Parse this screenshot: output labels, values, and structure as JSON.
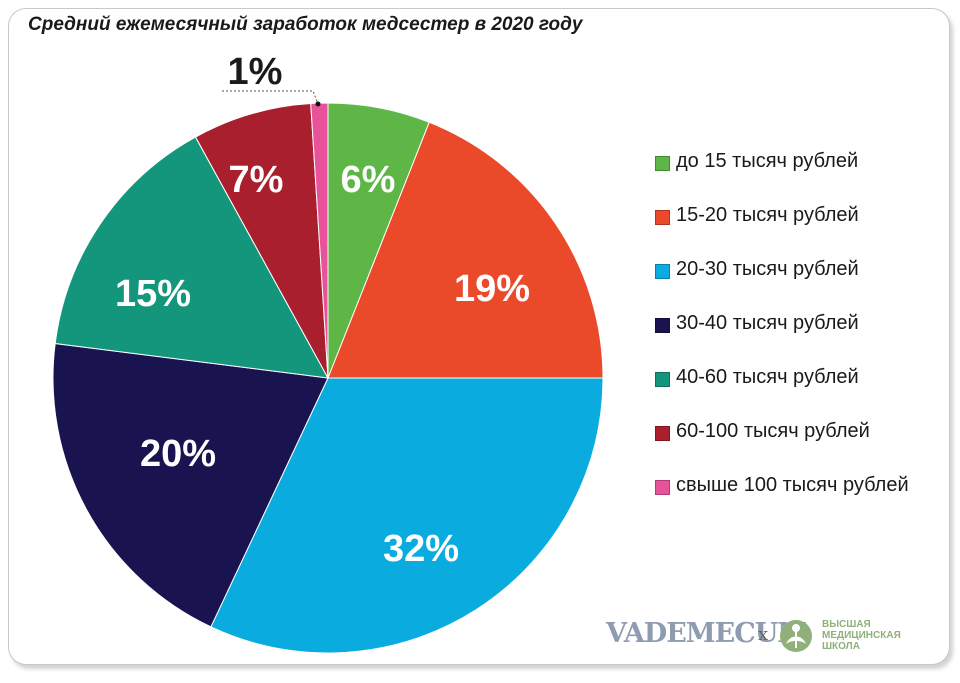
{
  "title": "Средний ежемесячный заработок медсестер в 2020 году",
  "chart_data": {
    "type": "pie",
    "title": "Средний ежемесячный заработок медсестер в 2020 году",
    "start_angle_deg": 0,
    "direction": "clockwise",
    "slices": [
      {
        "label": "до 15 тысяч рублей",
        "value": 6,
        "display": "6%",
        "color": "#5db646"
      },
      {
        "label": "15-20 тысяч рублей",
        "value": 19,
        "display": "19%",
        "color": "#ea4a29"
      },
      {
        "label": "20-30 тысяч рублей",
        "value": 32,
        "display": "32%",
        "color": "#0aacdf"
      },
      {
        "label": "30-40 тысяч рублей",
        "value": 20,
        "display": "20%",
        "color": "#191450"
      },
      {
        "label": "40-60 тысяч рублей",
        "value": 15,
        "display": "15%",
        "color": "#13967c"
      },
      {
        "label": "60-100 тысяч рублей",
        "value": 7,
        "display": "7%",
        "color": "#a91f2e"
      },
      {
        "label": "свыше 100 тысяч рублей",
        "value": 1,
        "display": "1%",
        "color": "#e8529b"
      }
    ],
    "legend_position": "right"
  },
  "logos": {
    "brand": "VADEMECUM",
    "separator": "x",
    "partner_line1": "ВЫСШАЯ",
    "partner_line2": "МЕДИЦИНСКАЯ",
    "partner_line3": "ШКОЛА"
  }
}
